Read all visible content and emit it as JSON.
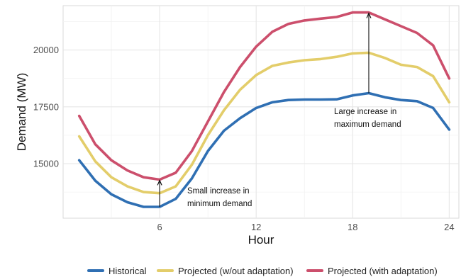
{
  "chart_data": {
    "type": "line",
    "xlabel": "Hour",
    "ylabel": "Demand (MW)",
    "xlim": [
      0,
      24.6
    ],
    "ylim": [
      12600,
      21950
    ],
    "x_ticks": [
      6,
      12,
      18,
      24
    ],
    "x_tick_labels": [
      "6",
      "12",
      "18",
      "24"
    ],
    "y_ticks": [
      15000,
      17500,
      20000
    ],
    "y_tick_labels": [
      "15000",
      "17500",
      "20000"
    ],
    "grid": true,
    "legend_position": "bottom",
    "x": [
      1,
      2,
      3,
      4,
      5,
      6,
      7,
      8,
      9,
      10,
      11,
      12,
      13,
      14,
      15,
      16,
      17,
      18,
      19,
      20,
      21,
      22,
      23,
      24
    ],
    "series": [
      {
        "name": "Historical",
        "color": "#2f6fb3",
        "values": [
          15150,
          14250,
          13650,
          13300,
          13100,
          13100,
          13450,
          14350,
          15550,
          16450,
          17000,
          17450,
          17700,
          17800,
          17820,
          17820,
          17830,
          18000,
          18100,
          17920,
          17800,
          17750,
          17450,
          16500
        ]
      },
      {
        "name": "Projected (w/out adaptation)",
        "color": "#e3cd6a",
        "values": [
          16200,
          15100,
          14400,
          14000,
          13750,
          13700,
          14000,
          14950,
          16250,
          17350,
          18250,
          18900,
          19300,
          19450,
          19550,
          19600,
          19700,
          19850,
          19880,
          19650,
          19350,
          19250,
          18850,
          17700
        ]
      },
      {
        "name": "Projected (with adaptation)",
        "color": "#cc4f6c",
        "values": [
          17100,
          15850,
          15150,
          14700,
          14400,
          14300,
          14600,
          15550,
          16850,
          18150,
          19250,
          20150,
          20800,
          21150,
          21300,
          21380,
          21450,
          21650,
          21650,
          21350,
          21050,
          20750,
          20200,
          18750
        ]
      }
    ],
    "annotations": [
      {
        "lines": [
          "Small increase in",
          "minimum demand"
        ],
        "arrow_from": [
          6,
          13100
        ],
        "arrow_to": [
          6,
          14300
        ]
      },
      {
        "lines": [
          "Large increase in",
          "maximum demand"
        ],
        "arrow_from": [
          19,
          18100
        ],
        "arrow_to": [
          19,
          21650
        ]
      }
    ]
  }
}
